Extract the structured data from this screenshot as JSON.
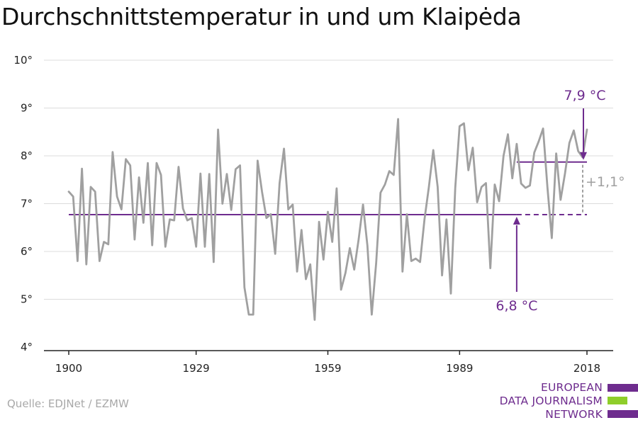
{
  "source": "Quelle: EDJNet / EZMW",
  "logo": {
    "lines": [
      "EUROPEAN",
      "DATA JOURNALISM",
      "NETWORK"
    ],
    "colors": {
      "purple": "#6e2c8e",
      "green": "#8fce2a"
    }
  },
  "colors": {
    "series": "#a0a0a0",
    "reference": "#6e2c8e",
    "diff": "#a0a0a0",
    "grid": "#dcdcdc",
    "axis": "#222222"
  },
  "chart_data": {
    "type": "line",
    "title": "Durchschnittstemperatur in und um Klaipėda",
    "xlabel": "",
    "ylabel": "",
    "xlim": [
      1900,
      2018
    ],
    "ylim": [
      4,
      10
    ],
    "grid": true,
    "x_ticks": [
      1900,
      1929,
      1959,
      1989,
      2018
    ],
    "x_tick_labels": [
      "1900",
      "1929",
      "1959",
      "1989",
      "2018"
    ],
    "y_ticks": [
      4,
      5,
      6,
      7,
      8,
      9,
      10
    ],
    "y_tick_labels": [
      "4°",
      "5°",
      "6°",
      "7°",
      "8°",
      "9°",
      "10°"
    ],
    "x": [
      1900,
      1901,
      1902,
      1903,
      1904,
      1905,
      1906,
      1907,
      1908,
      1909,
      1910,
      1911,
      1912,
      1913,
      1914,
      1915,
      1916,
      1917,
      1918,
      1919,
      1920,
      1921,
      1922,
      1923,
      1924,
      1925,
      1926,
      1927,
      1928,
      1929,
      1930,
      1931,
      1932,
      1933,
      1934,
      1935,
      1936,
      1937,
      1938,
      1939,
      1940,
      1941,
      1942,
      1943,
      1944,
      1945,
      1946,
      1947,
      1948,
      1949,
      1950,
      1951,
      1952,
      1953,
      1954,
      1955,
      1956,
      1957,
      1958,
      1959,
      1960,
      1961,
      1962,
      1963,
      1964,
      1965,
      1966,
      1967,
      1968,
      1969,
      1970,
      1971,
      1972,
      1973,
      1974,
      1975,
      1976,
      1977,
      1978,
      1979,
      1980,
      1981,
      1982,
      1983,
      1984,
      1985,
      1986,
      1987,
      1988,
      1989,
      1990,
      1991,
      1992,
      1993,
      1994,
      1995,
      1996,
      1997,
      1998,
      1999,
      2000,
      2001,
      2002,
      2003,
      2004,
      2005,
      2006,
      2007,
      2008,
      2009,
      2010,
      2011,
      2012,
      2013,
      2014,
      2015,
      2016,
      2017,
      2018
    ],
    "series": [
      {
        "values": [
          7.25,
          7.15,
          5.8,
          7.73,
          5.73,
          7.35,
          7.25,
          5.8,
          6.2,
          6.15,
          8.08,
          7.15,
          6.88,
          7.93,
          7.8,
          6.25,
          7.55,
          6.6,
          7.85,
          6.13,
          7.85,
          7.6,
          6.1,
          6.67,
          6.65,
          7.77,
          6.9,
          6.65,
          6.7,
          6.1,
          7.63,
          6.1,
          7.62,
          5.78,
          8.55,
          7.0,
          7.62,
          6.87,
          7.72,
          7.8,
          5.25,
          4.68,
          4.68,
          7.9,
          7.25,
          6.7,
          6.78,
          5.95,
          7.43,
          8.15,
          6.88,
          6.98,
          5.58,
          6.45,
          5.42,
          5.73,
          4.57,
          6.62,
          5.83,
          6.83,
          6.2,
          7.32,
          5.2,
          5.55,
          6.07,
          5.62,
          6.25,
          6.98,
          6.12,
          4.68,
          5.75,
          7.23,
          7.4,
          7.68,
          7.6,
          8.77,
          5.58,
          6.78,
          5.8,
          5.85,
          5.78,
          6.67,
          7.35,
          8.12,
          7.35,
          5.5,
          6.67,
          5.12,
          7.33,
          8.62,
          8.68,
          7.7,
          8.17,
          7.03,
          7.35,
          7.43,
          5.65,
          7.4,
          7.05,
          8.0,
          8.45,
          7.53,
          8.25,
          7.42,
          7.33,
          7.38,
          8.07,
          8.3,
          8.57,
          7.35,
          6.28,
          8.05,
          7.08,
          7.63,
          8.27,
          8.53,
          8.1,
          7.97,
          8.55
        ]
      }
    ],
    "reference_lines": [
      {
        "label": "6,8 °C",
        "value": 6.77,
        "x_from": 1900,
        "x_to": 2018,
        "dashed_from": 2002
      },
      {
        "label": "7,9 °C",
        "value": 7.87,
        "x_from": 2002,
        "x_to": 2018
      }
    ],
    "annotations": {
      "diff_label": "+1,1°",
      "low_label": "6,8 °C",
      "high_label": "7,9 °C"
    }
  }
}
